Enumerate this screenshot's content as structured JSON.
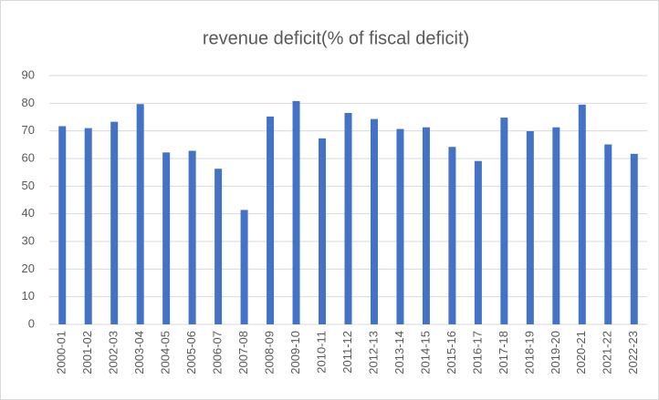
{
  "chart_data": {
    "type": "bar",
    "title": "revenue deficit(% of fiscal deficit)",
    "categories": [
      "2000-01",
      "2001-02",
      "2002-03",
      "2003-04",
      "2004-05",
      "2005-06",
      "2006-07",
      "2007-08",
      "2008-09",
      "2009-10",
      "2010-11",
      "2011-12",
      "2012-13",
      "2013-14",
      "2014-15",
      "2015-16",
      "2016-17",
      "2017-18",
      "2018-19",
      "2019-20",
      "2020-21",
      "2021-22",
      "2022-23"
    ],
    "values": [
      71.7,
      71.0,
      73.3,
      79.7,
      62.2,
      62.8,
      56.3,
      41.4,
      75.2,
      80.8,
      67.3,
      76.5,
      74.3,
      70.7,
      71.3,
      64.2,
      59.1,
      74.8,
      69.9,
      71.3,
      79.5,
      65.1,
      61.7
    ],
    "color": "#4472c4",
    "ylim": [
      0,
      90
    ],
    "yticks": [
      0,
      10,
      20,
      30,
      40,
      50,
      60,
      70,
      80,
      90
    ],
    "grid": true
  }
}
